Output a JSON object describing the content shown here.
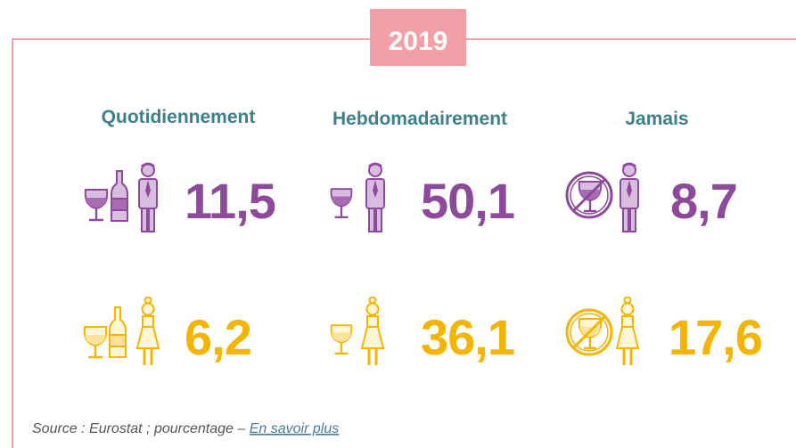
{
  "year": "2019",
  "columns": [
    {
      "label": "Quotidiennement"
    },
    {
      "label": "Hebdomadairement"
    },
    {
      "label": "Jamais"
    }
  ],
  "rows": [
    {
      "values": [
        "11,5",
        "50,1",
        "8,7"
      ]
    },
    {
      "values": [
        "6,2",
        "36,1",
        "17,6"
      ]
    }
  ],
  "source": "Source : Eurostat ; pourcentage –",
  "link": "En savoir plus"
}
